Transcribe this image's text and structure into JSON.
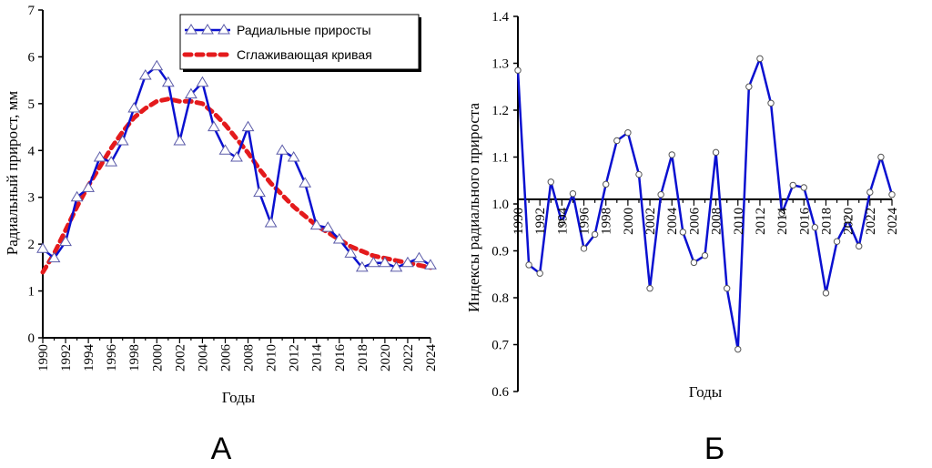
{
  "colors": {
    "series": "#0a10d0",
    "smooth": "#e41a1c",
    "axis": "#000000"
  },
  "chart_data": [
    {
      "type": "line",
      "panel_label": "А",
      "xlabel": "Годы",
      "ylabel": "Радиальный прирост, мм",
      "xlim": [
        1990,
        2024
      ],
      "ylim": [
        0,
        7
      ],
      "y_ticks": [
        "0",
        "1",
        "2",
        "3",
        "4",
        "5",
        "6",
        "7"
      ],
      "x_ticks": [
        "1990",
        "1992",
        "1994",
        "1996",
        "1998",
        "2000",
        "2002",
        "2004",
        "2006",
        "2008",
        "2010",
        "2012",
        "2014",
        "2016",
        "2018",
        "2020",
        "2022",
        "2024"
      ],
      "x": [
        1990,
        1991,
        1992,
        1993,
        1994,
        1995,
        1996,
        1997,
        1998,
        1999,
        2000,
        2001,
        2002,
        2003,
        2004,
        2005,
        2006,
        2007,
        2008,
        2009,
        2010,
        2011,
        2012,
        2013,
        2014,
        2015,
        2016,
        2017,
        2018,
        2019,
        2020,
        2021,
        2022,
        2023,
        2024
      ],
      "series": [
        {
          "name": "Радиальные приросты",
          "marker": "triangle",
          "values": [
            1.9,
            1.7,
            2.05,
            3.0,
            3.2,
            3.85,
            3.75,
            4.2,
            4.9,
            5.6,
            5.8,
            5.45,
            4.2,
            5.2,
            5.45,
            4.5,
            4.0,
            3.85,
            4.5,
            3.1,
            2.45,
            4.0,
            3.85,
            3.3,
            2.4,
            2.35,
            2.1,
            1.8,
            1.5,
            1.6,
            1.6,
            1.5,
            1.6,
            1.7,
            1.55
          ]
        },
        {
          "name": "Сглаживающая кривая",
          "style": "dashed",
          "values": [
            1.4,
            1.8,
            2.3,
            2.8,
            3.25,
            3.65,
            4.05,
            4.4,
            4.7,
            4.9,
            5.05,
            5.1,
            5.05,
            5.05,
            5.0,
            4.8,
            4.55,
            4.25,
            3.95,
            3.6,
            3.3,
            3.05,
            2.8,
            2.6,
            2.4,
            2.25,
            2.1,
            1.95,
            1.85,
            1.75,
            1.7,
            1.65,
            1.6,
            1.55,
            1.5
          ]
        }
      ],
      "legend": "top-right"
    },
    {
      "type": "line",
      "panel_label": "Б",
      "xlabel": "Годы",
      "ylabel": "Индексы радиального прироста",
      "xlim": [
        1990,
        2024
      ],
      "ylim": [
        0.6,
        1.4
      ],
      "baseline": 1.01,
      "y_ticks": [
        "0.6",
        "0.7",
        "0.8",
        "0.9",
        "1.0",
        "1.1",
        "1.2",
        "1.3",
        "1.4"
      ],
      "x_ticks": [
        "1990",
        "1992",
        "1994",
        "1996",
        "1998",
        "2000",
        "2002",
        "2004",
        "2006",
        "2008",
        "2010",
        "2012",
        "2014",
        "2016",
        "2018",
        "2020",
        "2022",
        "2024"
      ],
      "x": [
        1990,
        1991,
        1992,
        1993,
        1994,
        1995,
        1996,
        1997,
        1998,
        1999,
        2000,
        2001,
        2002,
        2003,
        2004,
        2005,
        2006,
        2007,
        2008,
        2009,
        2010,
        2011,
        2012,
        2013,
        2014,
        2015,
        2016,
        2017,
        2018,
        2019,
        2020,
        2021,
        2022,
        2023,
        2024
      ],
      "series": [
        {
          "name": "Индексы",
          "values": [
            1.285,
            0.87,
            0.852,
            1.047,
            0.96,
            1.022,
            0.905,
            0.935,
            1.042,
            1.135,
            1.152,
            1.063,
            0.82,
            1.02,
            1.105,
            0.94,
            0.875,
            0.89,
            1.11,
            0.82,
            0.69,
            1.25,
            1.31,
            1.215,
            0.98,
            1.04,
            1.035,
            0.95,
            0.81,
            0.92,
            0.965,
            0.91,
            1.025,
            1.1,
            1.02
          ]
        }
      ]
    }
  ]
}
